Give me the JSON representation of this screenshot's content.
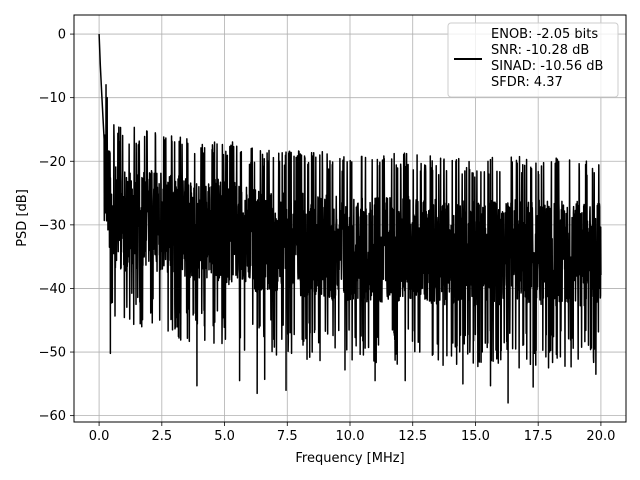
{
  "chart_data": {
    "type": "line",
    "title": "",
    "xlabel": "Frequency [MHz]",
    "ylabel": "PSD [dB]",
    "xlim": [
      -1.0,
      21.0
    ],
    "ylim": [
      -61.0,
      3.0
    ],
    "xticks": [
      0.0,
      2.5,
      5.0,
      7.5,
      10.0,
      12.5,
      15.0,
      17.5,
      20.0
    ],
    "xtick_labels": [
      "0.0",
      "2.5",
      "5.0",
      "7.5",
      "10.0",
      "12.5",
      "15.0",
      "17.5",
      "20.0"
    ],
    "yticks": [
      0,
      -10,
      -20,
      -30,
      -40,
      -50,
      -60
    ],
    "ytick_labels": [
      "0",
      "−10",
      "−20",
      "−30",
      "−40",
      "−50",
      "−60"
    ],
    "grid": true,
    "legend_position": "top-right",
    "series": [
      {
        "name": "ENOB: -2.05 bits\nSNR: -10.28 dB\nSINAD: -10.56 dB\nSFDR: 4.37",
        "color": "#000000",
        "envelope": {
          "x": [
            0.0,
            0.5,
            1.0,
            2.0,
            3.0,
            4.0,
            5.0,
            6.0,
            7.0,
            8.0,
            9.0,
            10.0,
            11.0,
            12.0,
            13.0,
            14.0,
            15.0,
            16.0,
            17.0,
            18.0,
            19.0,
            20.0
          ],
          "upper": [
            0.0,
            -17.0,
            -17.5,
            -17.8,
            -18.5,
            -19.0,
            -19.0,
            -20.5,
            -21.0,
            -21.0,
            -21.5,
            -22.0,
            -22.0,
            -21.5,
            -22.0,
            -22.5,
            -22.5,
            -22.0,
            -22.0,
            -22.5,
            -22.5,
            -22.5
          ],
          "lower": [
            -36.0,
            -46.0,
            -47.0,
            -46.0,
            -48.0,
            -49.0,
            -49.0,
            -50.0,
            -51.0,
            -51.0,
            -51.5,
            -52.0,
            -52.0,
            -52.0,
            -52.0,
            -52.5,
            -52.5,
            -52.5,
            -52.5,
            -52.5,
            -52.5,
            -52.5
          ]
        },
        "notable_points": [
          {
            "x": 0.0,
            "y": 0.0
          },
          {
            "x": 0.05,
            "y": -5.0
          },
          {
            "x": 0.1,
            "y": -9.0
          },
          {
            "x": 0.45,
            "y": -50.2
          },
          {
            "x": 3.9,
            "y": -55.3
          },
          {
            "x": 5.6,
            "y": -54.5
          },
          {
            "x": 6.3,
            "y": -56.5
          },
          {
            "x": 6.6,
            "y": -54.3
          },
          {
            "x": 7.45,
            "y": -56.0
          },
          {
            "x": 9.8,
            "y": -52.8
          },
          {
            "x": 11.0,
            "y": -54.5
          },
          {
            "x": 12.2,
            "y": -54.5
          },
          {
            "x": 14.5,
            "y": -55.0
          },
          {
            "x": 15.6,
            "y": -55.3
          },
          {
            "x": 16.3,
            "y": -58.0
          },
          {
            "x": 17.3,
            "y": -55.5
          },
          {
            "x": 19.8,
            "y": -53.5
          }
        ]
      }
    ]
  }
}
